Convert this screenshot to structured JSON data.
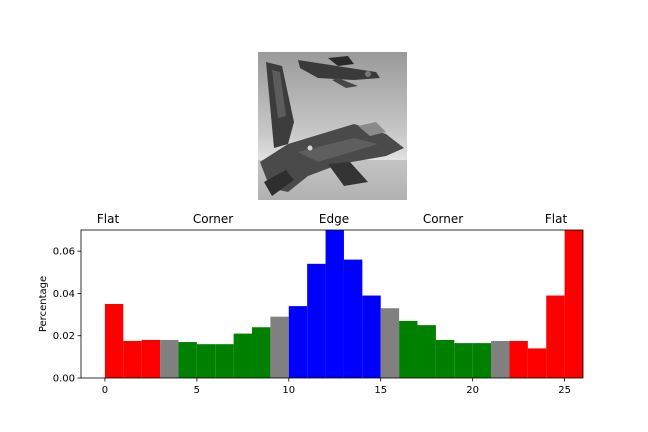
{
  "chart_data": {
    "type": "bar",
    "xlabel": "",
    "ylabel": "Percentage",
    "xlim": [
      -1.3,
      26
    ],
    "ylim": [
      0,
      0.07
    ],
    "xticks": [
      0,
      5,
      10,
      15,
      20,
      25
    ],
    "xtick_labels": [
      "0",
      "5",
      "10",
      "15",
      "20",
      "25"
    ],
    "yticks": [
      0.0,
      0.02,
      0.04,
      0.06
    ],
    "ytick_labels": [
      "0.00",
      "0.02",
      "0.04",
      "0.06"
    ],
    "region_labels": [
      "Flat",
      "Corner",
      "Edge",
      "Corner",
      "Flat"
    ],
    "grid": false,
    "bins": [
      {
        "x": 0,
        "value": 0.035,
        "color": "#ff0000"
      },
      {
        "x": 1,
        "value": 0.0175,
        "color": "#ff0000"
      },
      {
        "x": 2,
        "value": 0.018,
        "color": "#ff0000"
      },
      {
        "x": 3,
        "value": 0.018,
        "color": "#808080"
      },
      {
        "x": 4,
        "value": 0.017,
        "color": "#008000"
      },
      {
        "x": 5,
        "value": 0.016,
        "color": "#008000"
      },
      {
        "x": 6,
        "value": 0.016,
        "color": "#008000"
      },
      {
        "x": 7,
        "value": 0.021,
        "color": "#008000"
      },
      {
        "x": 8,
        "value": 0.024,
        "color": "#008000"
      },
      {
        "x": 9,
        "value": 0.029,
        "color": "#808080"
      },
      {
        "x": 10,
        "value": 0.034,
        "color": "#0000ff"
      },
      {
        "x": 11,
        "value": 0.054,
        "color": "#0000ff"
      },
      {
        "x": 12,
        "value": 0.07,
        "color": "#0000ff"
      },
      {
        "x": 13,
        "value": 0.056,
        "color": "#0000ff"
      },
      {
        "x": 14,
        "value": 0.039,
        "color": "#0000ff"
      },
      {
        "x": 15,
        "value": 0.033,
        "color": "#808080"
      },
      {
        "x": 16,
        "value": 0.027,
        "color": "#008000"
      },
      {
        "x": 17,
        "value": 0.025,
        "color": "#008000"
      },
      {
        "x": 18,
        "value": 0.018,
        "color": "#008000"
      },
      {
        "x": 19,
        "value": 0.0165,
        "color": "#008000"
      },
      {
        "x": 20,
        "value": 0.0165,
        "color": "#008000"
      },
      {
        "x": 21,
        "value": 0.0175,
        "color": "#808080"
      },
      {
        "x": 22,
        "value": 0.0175,
        "color": "#ff0000"
      },
      {
        "x": 23,
        "value": 0.014,
        "color": "#ff0000"
      },
      {
        "x": 24,
        "value": 0.039,
        "color": "#ff0000"
      },
      {
        "x": 25,
        "value": 0.07,
        "color": "#ff0000"
      }
    ]
  },
  "image": {
    "description_icon": "grayscale-fighter-jet-photo"
  }
}
